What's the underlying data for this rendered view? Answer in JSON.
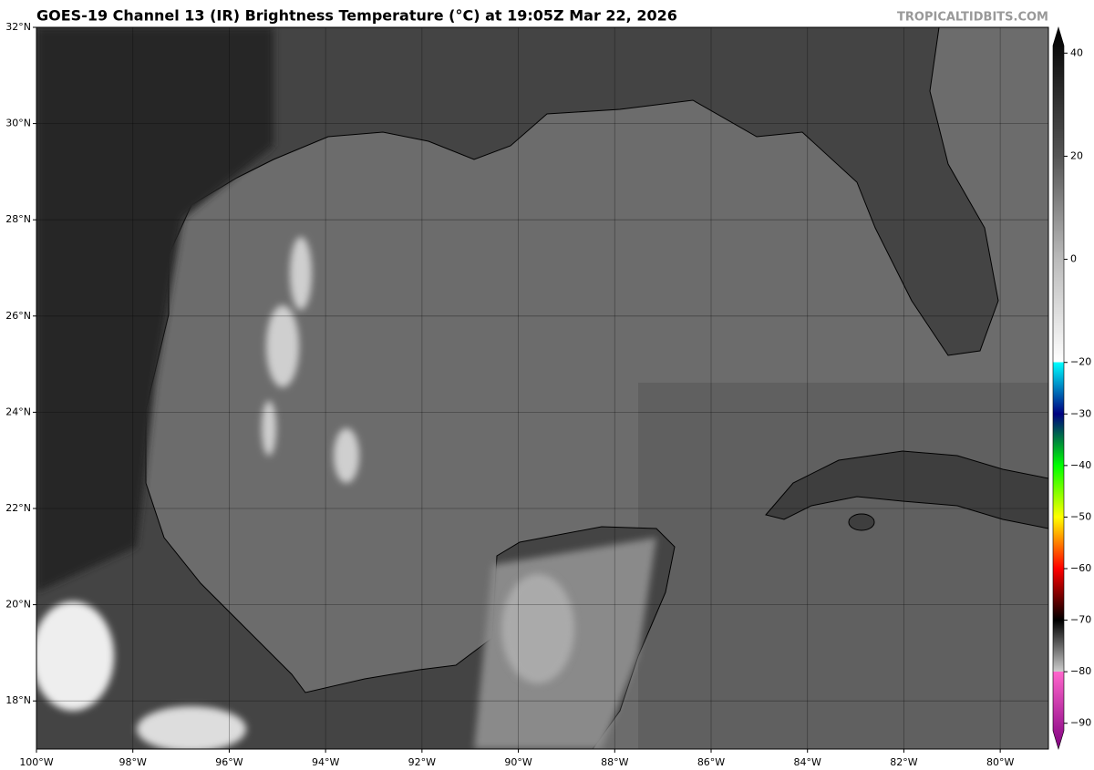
{
  "header": {
    "title": "GOES-19 Channel 13 (IR) Brightness Temperature (°C) at 19:05Z Mar 22, 2026",
    "credit": "TROPICALTIDBITS.COM"
  },
  "map": {
    "xlim": [
      -100,
      -79
    ],
    "ylim": [
      17,
      32
    ],
    "grid": true,
    "xticks": [
      {
        "value": -100,
        "label": "100°W"
      },
      {
        "value": -98,
        "label": "98°W"
      },
      {
        "value": -96,
        "label": "96°W"
      },
      {
        "value": -94,
        "label": "94°W"
      },
      {
        "value": -92,
        "label": "92°W"
      },
      {
        "value": -90,
        "label": "90°W"
      },
      {
        "value": -88,
        "label": "88°W"
      },
      {
        "value": -86,
        "label": "86°W"
      },
      {
        "value": -84,
        "label": "84°W"
      },
      {
        "value": -82,
        "label": "82°W"
      },
      {
        "value": -80,
        "label": "80°W"
      }
    ],
    "yticks": [
      {
        "value": 18,
        "label": "18°N"
      },
      {
        "value": 20,
        "label": "20°N"
      },
      {
        "value": 22,
        "label": "22°N"
      },
      {
        "value": 24,
        "label": "24°N"
      },
      {
        "value": 26,
        "label": "26°N"
      },
      {
        "value": 28,
        "label": "28°N"
      },
      {
        "value": 30,
        "label": "30°N"
      },
      {
        "value": 32,
        "label": "32°N"
      }
    ]
  },
  "colorbar": {
    "lim": [
      -95,
      45
    ],
    "ticks": [
      40,
      20,
      0,
      {
        "value": -20,
        "label": "−20"
      },
      {
        "value": -30,
        "label": "−30"
      },
      {
        "value": -40,
        "label": "−40"
      },
      {
        "value": -50,
        "label": "−50"
      },
      {
        "value": -60,
        "label": "−60"
      },
      {
        "value": -70,
        "label": "−70"
      },
      {
        "value": -80,
        "label": "−80"
      },
      {
        "value": -90,
        "label": "−90"
      }
    ],
    "colormap": [
      {
        "value": 45,
        "color": "#000000"
      },
      {
        "value": 20,
        "color": "#555555"
      },
      {
        "value": 0,
        "color": "#bbbbbb"
      },
      {
        "value": -20,
        "color": "#ffffff"
      },
      {
        "value": -20,
        "color": "#00ffff"
      },
      {
        "value": -30,
        "color": "#000080"
      },
      {
        "value": -40,
        "color": "#00ff00"
      },
      {
        "value": -50,
        "color": "#ffff00"
      },
      {
        "value": -60,
        "color": "#ff0000"
      },
      {
        "value": -70,
        "color": "#000000"
      },
      {
        "value": -80,
        "color": "#cccccc"
      },
      {
        "value": -80,
        "color": "#ff66cc"
      },
      {
        "value": -95,
        "color": "#800080"
      }
    ]
  }
}
